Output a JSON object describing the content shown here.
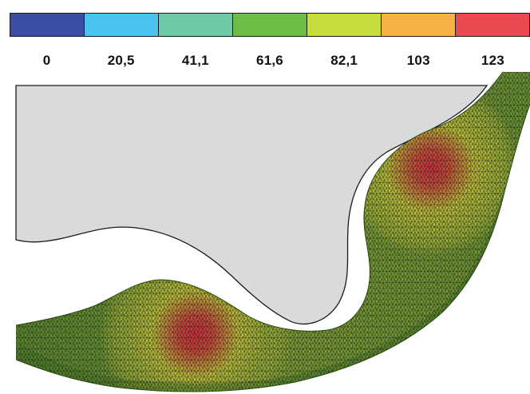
{
  "legend": {
    "colors": [
      "#3b4ea6",
      "#4cc3ee",
      "#6ec9a7",
      "#6bbd45",
      "#c7dd3d",
      "#f7b246",
      "#e84a4f"
    ],
    "ticks": [
      "0",
      "20,5",
      "41,1",
      "61,6",
      "82,1",
      "103",
      "123"
    ]
  },
  "mesh": {
    "low_color": "#4d8a2a",
    "mid_color": "#c6c93a",
    "high_color": "#de2f3e",
    "edge_color": "#1a1a1a",
    "body_fill": "#d9dadc"
  }
}
